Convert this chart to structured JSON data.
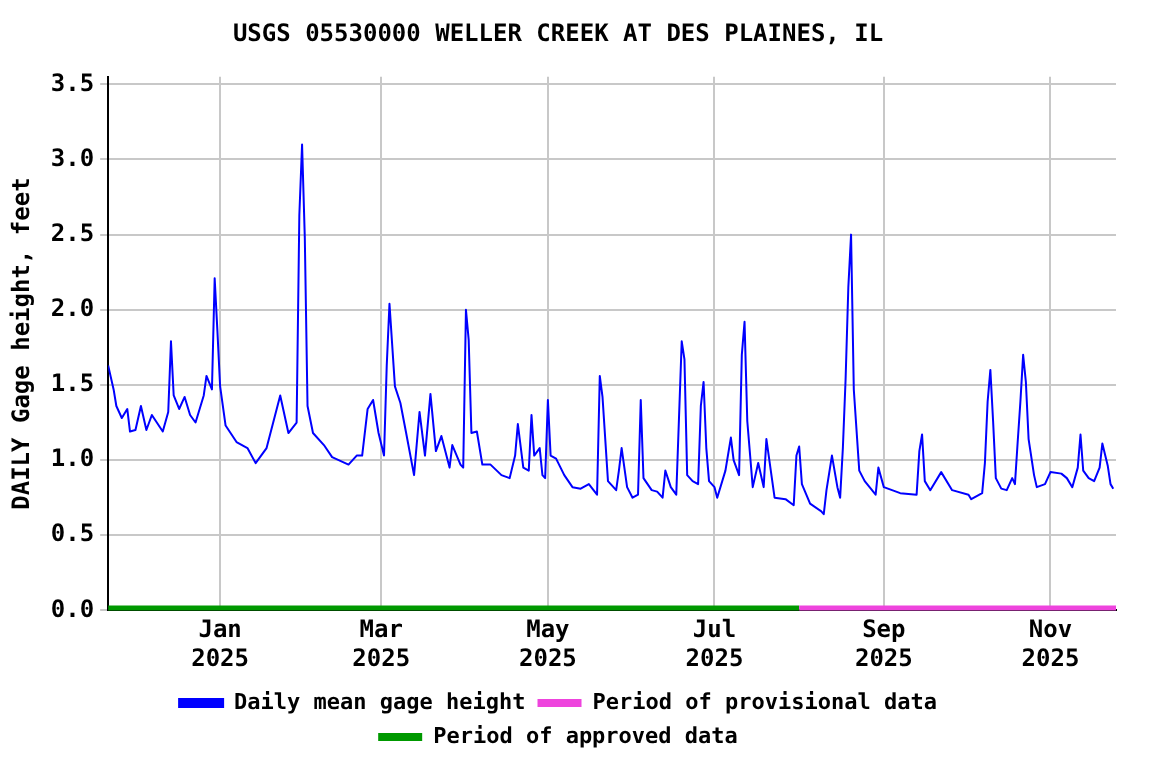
{
  "chart_data": {
    "type": "line",
    "title": "USGS 05530000 WELLER CREEK AT DES PLAINES, IL",
    "ylabel": "DAILY Gage height, feet",
    "xlim": [
      "2024-11-21",
      "2025-11-25"
    ],
    "xticks": [
      {
        "value": "2025-01-01",
        "label": "Jan 2025"
      },
      {
        "value": "2025-03-01",
        "label": "Mar 2025"
      },
      {
        "value": "2025-05-01",
        "label": "May 2025"
      },
      {
        "value": "2025-07-01",
        "label": "Jul 2025"
      },
      {
        "value": "2025-09-01",
        "label": "Sep 2025"
      },
      {
        "value": "2025-11-01",
        "label": "Nov 2025"
      }
    ],
    "ylim": [
      0,
      3.55
    ],
    "yticks": [
      {
        "value": 0,
        "label": "0.0"
      },
      {
        "value": 0.5,
        "label": "0.5"
      },
      {
        "value": 1,
        "label": "1.0"
      },
      {
        "value": 1.5,
        "label": "1.5"
      },
      {
        "value": 2,
        "label": "2.0"
      },
      {
        "value": 2.5,
        "label": "2.5"
      },
      {
        "value": 3,
        "label": "3.0"
      },
      {
        "value": 3.5,
        "label": "3.5"
      }
    ],
    "grid": true,
    "legend": "bottom",
    "marker": "none",
    "line_style": "solid",
    "series": [
      {
        "name": "Period of approved data",
        "color": "#009900",
        "x": [
          "2024-11-21",
          "2025-08-01"
        ],
        "values": [
          0,
          0
        ]
      },
      {
        "name": "Period of provisional data",
        "color": "#ee44dd",
        "x": [
          "2025-08-01",
          "2025-11-25"
        ],
        "values": [
          0,
          0
        ]
      },
      {
        "name": "Daily mean gage height",
        "color": "#0000ff",
        "x": [
          "2024-11-21",
          "2024-11-23",
          "2024-11-24",
          "2024-11-26",
          "2024-11-28",
          "2024-11-29",
          "2024-12-01",
          "2024-12-03",
          "2024-12-05",
          "2024-12-07",
          "2024-12-11",
          "2024-12-13",
          "2024-12-14",
          "2024-12-15",
          "2024-12-17",
          "2024-12-19",
          "2024-12-21",
          "2024-12-23",
          "2024-12-26",
          "2024-12-27",
          "2024-12-29",
          "2024-12-30",
          "2024-12-31",
          "2025-01-01",
          "2025-01-03",
          "2025-01-07",
          "2025-01-11",
          "2025-01-14",
          "2025-01-18",
          "2025-01-23",
          "2025-01-26",
          "2025-01-29",
          "2025-01-30",
          "2025-01-31",
          "2025-02-01",
          "2025-02-02",
          "2025-02-04",
          "2025-02-08",
          "2025-02-11",
          "2025-02-17",
          "2025-02-20",
          "2025-02-22",
          "2025-02-24",
          "2025-02-26",
          "2025-02-28",
          "2025-03-02",
          "2025-03-03",
          "2025-03-04",
          "2025-03-06",
          "2025-03-08",
          "2025-03-10",
          "2025-03-13",
          "2025-03-15",
          "2025-03-17",
          "2025-03-19",
          "2025-03-21",
          "2025-03-23",
          "2025-03-26",
          "2025-03-27",
          "2025-03-30",
          "2025-03-31",
          "2025-04-01",
          "2025-04-02",
          "2025-04-03",
          "2025-04-05",
          "2025-04-07",
          "2025-04-10",
          "2025-04-14",
          "2025-04-17",
          "2025-04-19",
          "2025-04-20",
          "2025-04-22",
          "2025-04-24",
          "2025-04-25",
          "2025-04-26",
          "2025-04-28",
          "2025-04-29",
          "2025-04-30",
          "2025-05-01",
          "2025-05-02",
          "2025-05-04",
          "2025-05-07",
          "2025-05-10",
          "2025-05-13",
          "2025-05-16",
          "2025-05-19",
          "2025-05-20",
          "2025-05-21",
          "2025-05-23",
          "2025-05-26",
          "2025-05-27",
          "2025-05-28",
          "2025-05-30",
          "2025-06-01",
          "2025-06-03",
          "2025-06-04",
          "2025-06-05",
          "2025-06-08",
          "2025-06-10",
          "2025-06-12",
          "2025-06-13",
          "2025-06-15",
          "2025-06-17",
          "2025-06-18",
          "2025-06-19",
          "2025-06-20",
          "2025-06-21",
          "2025-06-23",
          "2025-06-25",
          "2025-06-26",
          "2025-06-27",
          "2025-06-28",
          "2025-06-29",
          "2025-07-01",
          "2025-07-02",
          "2025-07-05",
          "2025-07-07",
          "2025-07-08",
          "2025-07-10",
          "2025-07-11",
          "2025-07-12",
          "2025-07-13",
          "2025-07-15",
          "2025-07-17",
          "2025-07-19",
          "2025-07-20",
          "2025-07-22",
          "2025-07-23",
          "2025-07-27",
          "2025-07-30",
          "2025-07-31",
          "2025-08-01",
          "2025-08-02",
          "2025-08-05",
          "2025-08-09",
          "2025-08-10",
          "2025-08-11",
          "2025-08-13",
          "2025-08-15",
          "2025-08-16",
          "2025-08-17",
          "2025-08-18",
          "2025-08-19",
          "2025-08-20",
          "2025-08-21",
          "2025-08-23",
          "2025-08-25",
          "2025-08-29",
          "2025-08-30",
          "2025-09-01",
          "2025-09-04",
          "2025-09-07",
          "2025-09-13",
          "2025-09-14",
          "2025-09-15",
          "2025-09-16",
          "2025-09-18",
          "2025-09-22",
          "2025-09-26",
          "2025-10-02",
          "2025-10-03",
          "2025-10-07",
          "2025-10-08",
          "2025-10-09",
          "2025-10-10",
          "2025-10-11",
          "2025-10-12",
          "2025-10-14",
          "2025-10-16",
          "2025-10-18",
          "2025-10-19",
          "2025-10-20",
          "2025-10-21",
          "2025-10-22",
          "2025-10-23",
          "2025-10-24",
          "2025-10-26",
          "2025-10-27",
          "2025-10-30",
          "2025-11-01",
          "2025-11-05",
          "2025-11-07",
          "2025-11-09",
          "2025-11-11",
          "2025-11-12",
          "2025-11-13",
          "2025-11-15",
          "2025-11-17",
          "2025-11-19",
          "2025-11-20",
          "2025-11-22",
          "2025-11-23",
          "2025-11-24"
        ],
        "values": [
          1.63,
          1.47,
          1.36,
          1.28,
          1.34,
          1.19,
          1.2,
          1.36,
          1.2,
          1.3,
          1.19,
          1.32,
          1.79,
          1.43,
          1.34,
          1.42,
          1.3,
          1.25,
          1.43,
          1.56,
          1.47,
          2.21,
          1.86,
          1.49,
          1.23,
          1.12,
          1.08,
          0.98,
          1.08,
          1.43,
          1.18,
          1.25,
          2.63,
          3.1,
          2.48,
          1.36,
          1.18,
          1.1,
          1.02,
          0.97,
          1.03,
          1.03,
          1.34,
          1.4,
          1.18,
          1.03,
          1.63,
          2.04,
          1.49,
          1.38,
          1.19,
          0.9,
          1.32,
          1.03,
          1.44,
          1.06,
          1.16,
          0.95,
          1.1,
          0.97,
          0.95,
          2.0,
          1.8,
          1.18,
          1.19,
          0.97,
          0.97,
          0.9,
          0.88,
          1.03,
          1.24,
          0.95,
          0.93,
          1.3,
          1.03,
          1.08,
          0.9,
          0.88,
          1.4,
          1.03,
          1.01,
          0.9,
          0.82,
          0.81,
          0.84,
          0.77,
          1.56,
          1.42,
          0.86,
          0.8,
          0.93,
          1.08,
          0.82,
          0.75,
          0.77,
          1.4,
          0.88,
          0.8,
          0.79,
          0.75,
          0.93,
          0.82,
          0.77,
          1.28,
          1.79,
          1.67,
          0.9,
          0.86,
          0.84,
          1.36,
          1.52,
          1.08,
          0.86,
          0.82,
          0.75,
          0.93,
          1.15,
          1.0,
          0.9,
          1.7,
          1.92,
          1.26,
          0.82,
          0.98,
          0.82,
          1.14,
          0.88,
          0.75,
          0.74,
          0.7,
          1.03,
          1.09,
          0.84,
          0.71,
          0.66,
          0.64,
          0.8,
          1.03,
          0.82,
          0.75,
          1.08,
          1.54,
          2.15,
          2.5,
          1.47,
          0.93,
          0.86,
          0.77,
          0.95,
          0.82,
          0.8,
          0.78,
          0.77,
          1.06,
          1.17,
          0.86,
          0.8,
          0.92,
          0.8,
          0.77,
          0.74,
          0.78,
          0.98,
          1.39,
          1.6,
          1.26,
          0.88,
          0.81,
          0.8,
          0.88,
          0.84,
          1.12,
          1.39,
          1.7,
          1.52,
          1.14,
          0.9,
          0.82,
          0.84,
          0.92,
          0.91,
          0.88,
          0.82,
          0.95,
          1.17,
          0.93,
          0.88,
          0.86,
          0.95,
          1.11,
          0.96,
          0.84,
          0.81
        ]
      }
    ]
  }
}
